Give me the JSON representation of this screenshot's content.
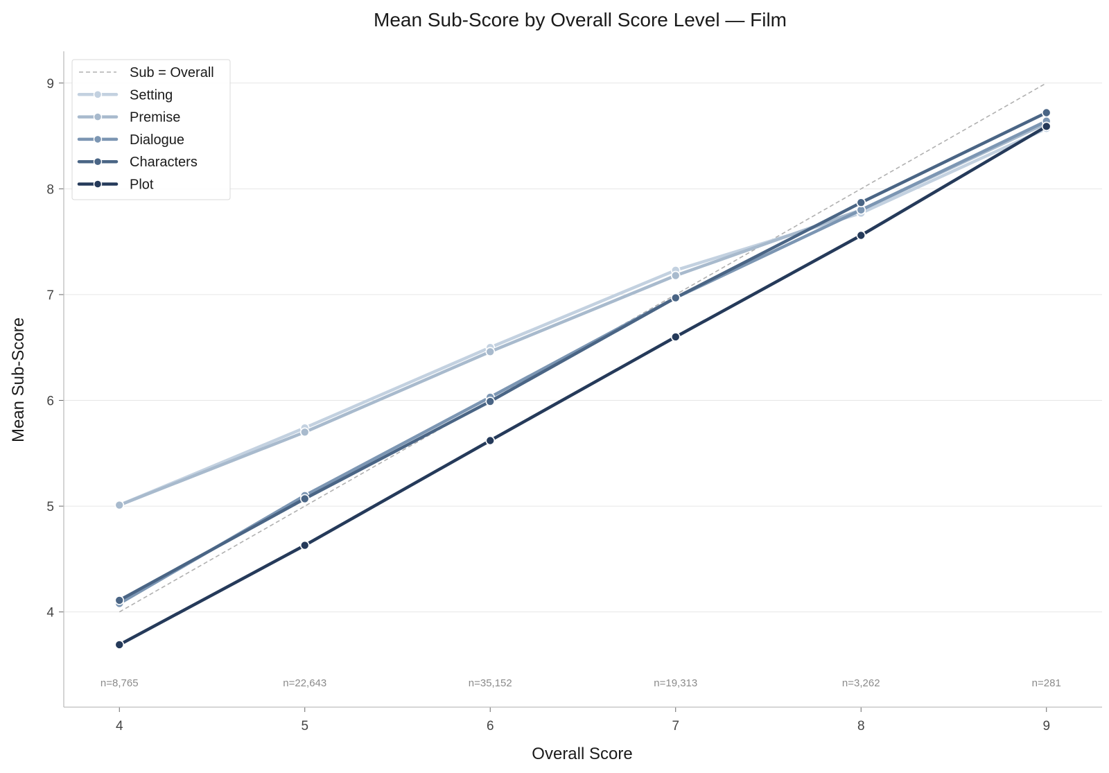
{
  "chart_data": {
    "type": "line",
    "title": "Mean Sub-Score by Overall Score Level — Film",
    "xlabel": "Overall Score",
    "ylabel": "Mean Sub-Score",
    "x": [
      4,
      5,
      6,
      7,
      8,
      9
    ],
    "x_ticks": [
      "4",
      "5",
      "6",
      "7",
      "8",
      "9"
    ],
    "y_ticks": [
      "4",
      "5",
      "6",
      "7",
      "8",
      "9"
    ],
    "xlim": [
      3.7,
      9.3
    ],
    "ylim": [
      3.1,
      9.3
    ],
    "grid": "horizontal",
    "legend_position": "top-left",
    "reference_line": {
      "name": "Sub = Overall",
      "x": [
        4,
        9
      ],
      "y": [
        4,
        9
      ],
      "color": "#b0b0b0",
      "style": "dashed"
    },
    "series": [
      {
        "name": "Setting",
        "color": "#c3d1e0",
        "values": [
          5.01,
          5.74,
          6.5,
          7.23,
          7.77,
          8.57
        ]
      },
      {
        "name": "Premise",
        "color": "#a8bacd",
        "values": [
          5.01,
          5.7,
          6.46,
          7.18,
          7.8,
          8.62
        ]
      },
      {
        "name": "Dialogue",
        "color": "#7c96b3",
        "values": [
          4.08,
          5.1,
          6.03,
          6.97,
          7.8,
          8.64
        ]
      },
      {
        "name": "Characters",
        "color": "#4a6585",
        "values": [
          4.11,
          5.07,
          5.99,
          6.97,
          7.87,
          8.72
        ]
      },
      {
        "name": "Plot",
        "color": "#253a5a",
        "values": [
          3.69,
          4.63,
          5.62,
          6.6,
          7.56,
          8.59
        ]
      }
    ],
    "annotations": [
      "n=8,765",
      "n=22,643",
      "n=35,152",
      "n=19,313",
      "n=3,262",
      "n=281"
    ]
  }
}
